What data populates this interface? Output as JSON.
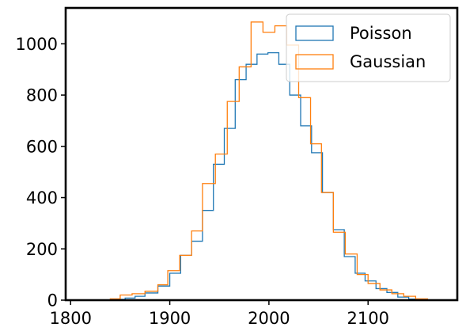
{
  "chart_data": {
    "type": "histogram",
    "xlim": [
      1795,
      2190
    ],
    "ylim": [
      0,
      1140
    ],
    "grid": false,
    "legend_position": "top-right",
    "x_ticks": [
      1800,
      1900,
      2000,
      2100
    ],
    "y_ticks": [
      0,
      200,
      400,
      600,
      800,
      1000
    ],
    "series": [
      {
        "name": "Poisson",
        "color": "#1f77b4",
        "edges": [
          1845,
          1855,
          1865,
          1875,
          1888,
          1900,
          1911,
          1922,
          1933,
          1944,
          1955,
          1966,
          1977,
          1988,
          1999,
          2010,
          2021,
          2032,
          2043,
          2054,
          2065,
          2076,
          2087,
          2097,
          2108,
          2119,
          2130,
          2141,
          2150
        ],
        "counts": [
          3,
          8,
          15,
          28,
          55,
          105,
          175,
          230,
          350,
          530,
          670,
          860,
          920,
          960,
          965,
          920,
          800,
          680,
          575,
          420,
          275,
          170,
          105,
          75,
          45,
          30,
          12,
          4
        ]
      },
      {
        "name": "Gaussian",
        "color": "#ff7f0e",
        "edges": [
          1840,
          1850,
          1862,
          1875,
          1888,
          1898,
          1910,
          1922,
          1933,
          1946,
          1958,
          1970,
          1982,
          1994,
          2006,
          2018,
          2030,
          2042,
          2053,
          2065,
          2077,
          2089,
          2100,
          2112,
          2124,
          2136,
          2148,
          2160
        ],
        "counts": [
          5,
          20,
          25,
          35,
          60,
          115,
          175,
          270,
          455,
          570,
          775,
          910,
          1085,
          1045,
          1070,
          995,
          790,
          610,
          420,
          265,
          180,
          100,
          65,
          40,
          25,
          15,
          5
        ]
      }
    ]
  }
}
